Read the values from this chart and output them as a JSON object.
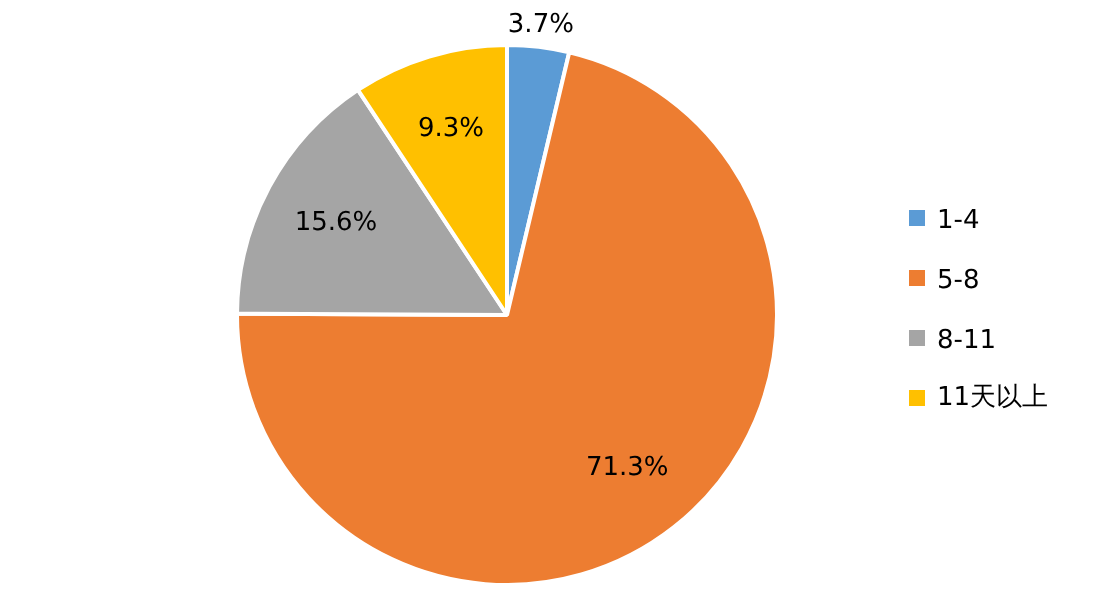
{
  "chart_data": {
    "type": "pie",
    "categories": [
      "1-4",
      "5-8",
      "8-11",
      "11天以上"
    ],
    "values": [
      3.7,
      71.3,
      15.6,
      9.3
    ],
    "value_labels": [
      "3.7%",
      "71.3%",
      "15.6%",
      "9.3%"
    ],
    "colors": [
      "#5b9bd5",
      "#ed7d31",
      "#a5a5a5",
      "#ffc000"
    ],
    "legend": "right"
  }
}
